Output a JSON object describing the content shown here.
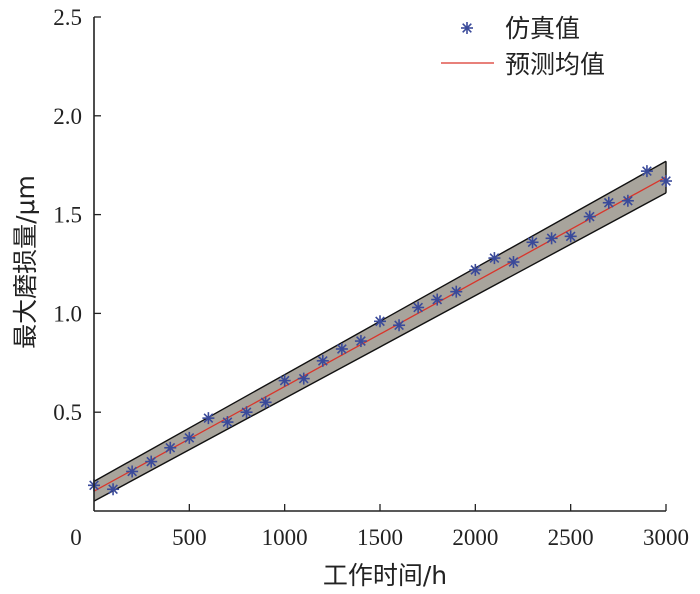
{
  "chart_data": {
    "type": "line",
    "xlabel": "工作时间/h",
    "ylabel": "最大磨损量/μm",
    "xlim": [
      0,
      3000
    ],
    "ylim": [
      0,
      2.5
    ],
    "xticks": [
      0,
      500,
      1000,
      1500,
      2000,
      2500,
      3000
    ],
    "yticks": [
      0.5,
      1.0,
      1.5,
      2.0,
      2.5
    ],
    "xtick_labels": [
      "0",
      "500",
      "1000",
      "1500",
      "2000",
      "2500",
      "3000"
    ],
    "ytick_labels": [
      "0.5",
      "1.0",
      "1.5",
      "2.0",
      "2.5"
    ],
    "grid": false,
    "legend_position": "top-right",
    "colors": {
      "scatter": "#3a4a9a",
      "mean_line": "#d9352b",
      "band_fill": "#a8a49c",
      "band_edge": "#111111"
    },
    "series": [
      {
        "name": "仿真值",
        "kind": "scatter",
        "marker": "asterisk",
        "x": [
          0,
          100,
          200,
          300,
          400,
          500,
          600,
          700,
          800,
          900,
          1000,
          1100,
          1200,
          1300,
          1400,
          1500,
          1600,
          1700,
          1800,
          1900,
          2000,
          2100,
          2200,
          2300,
          2400,
          2500,
          2600,
          2700,
          2800,
          2900,
          3000
        ],
        "y": [
          0.13,
          0.11,
          0.2,
          0.25,
          0.32,
          0.37,
          0.47,
          0.45,
          0.5,
          0.55,
          0.66,
          0.67,
          0.76,
          0.82,
          0.86,
          0.96,
          0.94,
          1.03,
          1.07,
          1.11,
          1.22,
          1.28,
          1.26,
          1.36,
          1.38,
          1.39,
          1.49,
          1.56,
          1.57,
          1.72,
          1.67
        ]
      },
      {
        "name": "预测均值",
        "kind": "line",
        "x": [
          0,
          3000
        ],
        "y": [
          0.1,
          1.69
        ]
      }
    ],
    "band": {
      "x": [
        0,
        3000
      ],
      "upper": [
        0.15,
        1.77
      ],
      "lower": [
        0.05,
        1.61
      ]
    }
  }
}
